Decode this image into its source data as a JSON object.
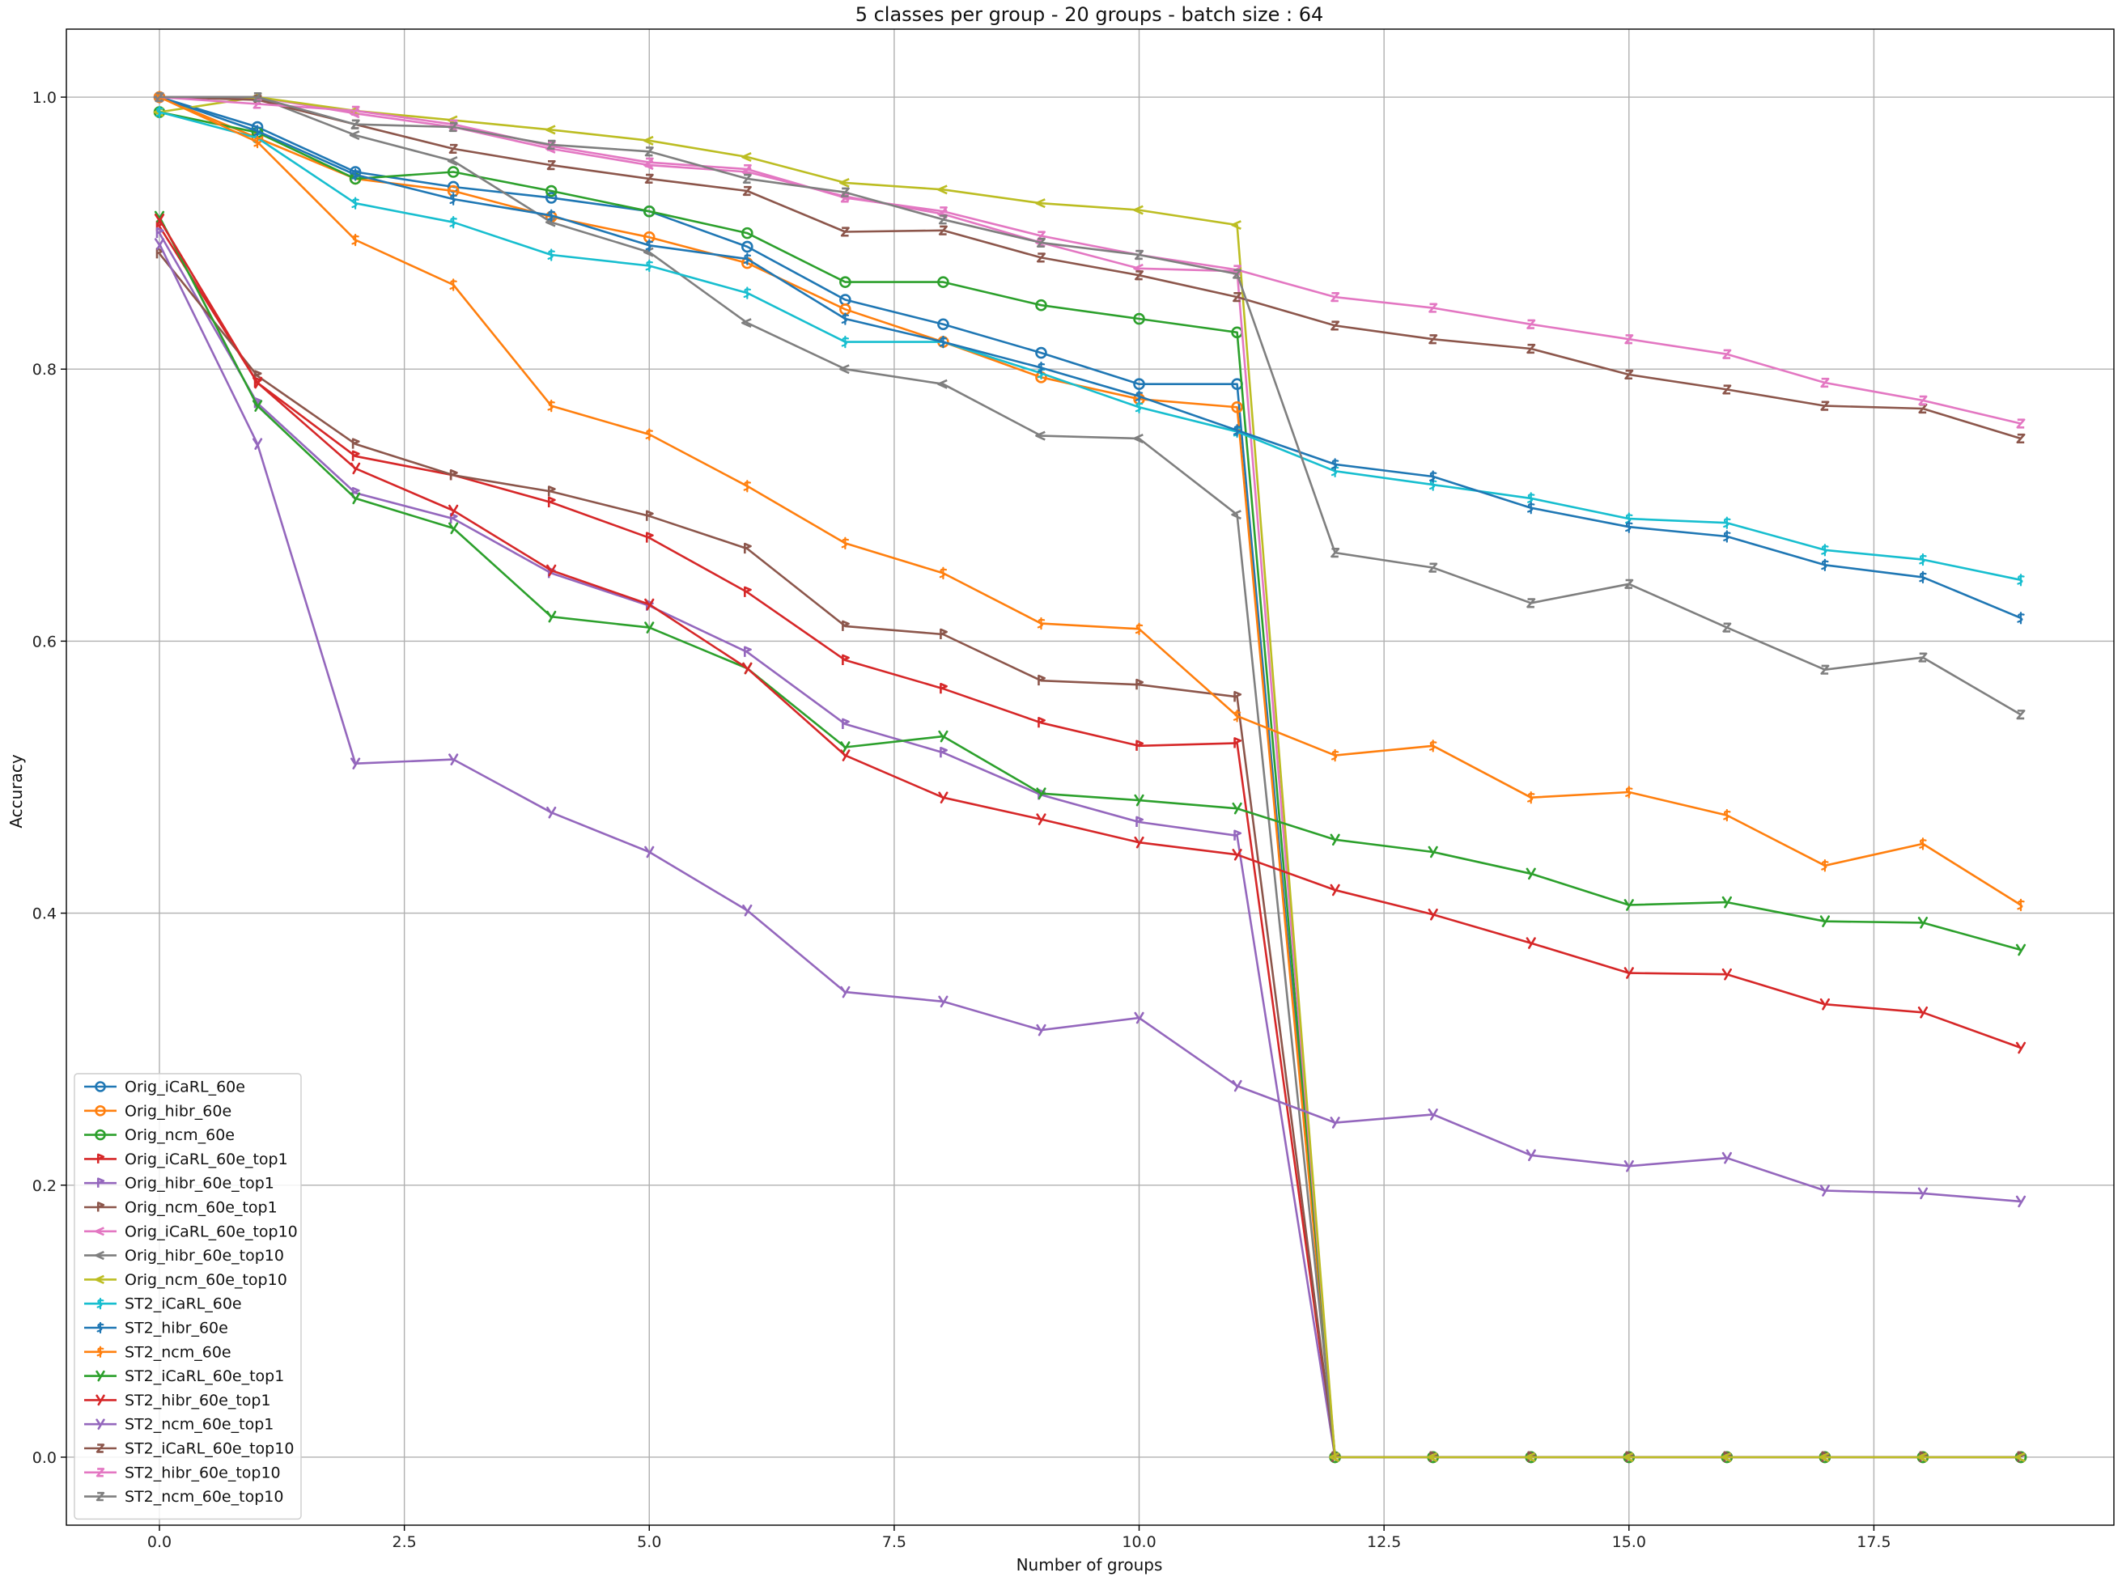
{
  "chart_data": {
    "type": "line",
    "title": "5 classes per group - 20 groups - batch size : 64",
    "xlabel": "Number of groups",
    "ylabel": "Accuracy",
    "xlim": [
      -0.95,
      19.95
    ],
    "ylim": [
      -0.05,
      1.05
    ],
    "xticks": [
      0.0,
      2.5,
      5.0,
      7.5,
      10.0,
      12.5,
      15.0,
      17.5
    ],
    "xtick_labels": [
      "0.0",
      "2.5",
      "5.0",
      "7.5",
      "10.0",
      "12.5",
      "15.0",
      "17.5"
    ],
    "yticks": [
      0.0,
      0.2,
      0.4,
      0.6,
      0.8,
      1.0
    ],
    "ytick_labels": [
      "0.0",
      "0.2",
      "0.4",
      "0.6",
      "0.8",
      "1.0"
    ],
    "grid": true,
    "legend_position": "lower-left",
    "series": [
      {
        "name": "Orig_iCaRL_60e",
        "color": "#1f77b4",
        "marker": "o",
        "x": [
          0,
          1,
          2,
          3,
          4,
          5,
          6,
          7,
          8,
          9,
          10,
          11,
          12,
          13,
          14,
          15,
          16,
          17,
          18,
          19
        ],
        "values": [
          1.0,
          0.978,
          0.945,
          0.934,
          0.926,
          0.916,
          0.89,
          0.851,
          0.833,
          0.812,
          0.789,
          0.789,
          0,
          0,
          0,
          0,
          0,
          0,
          0,
          0
        ]
      },
      {
        "name": "Orig_hibr_60e",
        "color": "#ff7f0e",
        "marker": "o",
        "x": [
          0,
          1,
          2,
          3,
          4,
          5,
          6,
          7,
          8,
          9,
          10,
          11,
          12,
          13,
          14,
          15,
          16,
          17,
          18,
          19
        ],
        "values": [
          1.0,
          0.97,
          0.94,
          0.931,
          0.912,
          0.897,
          0.878,
          0.844,
          0.82,
          0.794,
          0.778,
          0.772,
          0,
          0,
          0,
          0,
          0,
          0,
          0,
          0
        ]
      },
      {
        "name": "Orig_ncm_60e",
        "color": "#2ca02c",
        "marker": "o",
        "x": [
          0,
          1,
          2,
          3,
          4,
          5,
          6,
          7,
          8,
          9,
          10,
          11,
          12,
          13,
          14,
          15,
          16,
          17,
          18,
          19
        ],
        "values": [
          0.989,
          0.974,
          0.94,
          0.945,
          0.931,
          0.916,
          0.9,
          0.864,
          0.864,
          0.847,
          0.837,
          0.827,
          0,
          0,
          0,
          0,
          0,
          0,
          0,
          0
        ]
      },
      {
        "name": "Orig_iCaRL_60e_top1",
        "color": "#d62728",
        "marker": "p",
        "x": [
          0,
          1,
          2,
          3,
          4,
          5,
          6,
          7,
          8,
          9,
          10,
          11,
          12,
          13,
          14,
          15,
          16,
          17,
          18,
          19
        ],
        "values": [
          0.905,
          0.79,
          0.736,
          0.722,
          0.702,
          0.676,
          0.636,
          0.586,
          0.565,
          0.54,
          0.523,
          0.525,
          0,
          0,
          0,
          0,
          0,
          0,
          0,
          0
        ]
      },
      {
        "name": "Orig_hibr_60e_top1",
        "color": "#9467bd",
        "marker": "p",
        "x": [
          0,
          1,
          2,
          3,
          4,
          5,
          6,
          7,
          8,
          9,
          10,
          11,
          12,
          13,
          14,
          15,
          16,
          17,
          18,
          19
        ],
        "values": [
          0.9,
          0.775,
          0.709,
          0.69,
          0.65,
          0.626,
          0.592,
          0.539,
          0.518,
          0.487,
          0.467,
          0.457,
          0,
          0,
          0,
          0,
          0,
          0,
          0,
          0
        ]
      },
      {
        "name": "Orig_ncm_60e_top1",
        "color": "#8c564b",
        "marker": "p",
        "x": [
          0,
          1,
          2,
          3,
          4,
          5,
          6,
          7,
          8,
          9,
          10,
          11,
          12,
          13,
          14,
          15,
          16,
          17,
          18,
          19
        ],
        "values": [
          0.885,
          0.795,
          0.745,
          0.722,
          0.71,
          0.692,
          0.668,
          0.611,
          0.605,
          0.571,
          0.568,
          0.559,
          0,
          0,
          0,
          0,
          0,
          0,
          0,
          0
        ]
      },
      {
        "name": "Orig_iCaRL_60e_top10",
        "color": "#e377c2",
        "marker": "<",
        "x": [
          0,
          1,
          2,
          3,
          4,
          5,
          6,
          7,
          8,
          9,
          10,
          11,
          12,
          13,
          14,
          15,
          16,
          17,
          18,
          19
        ],
        "values": [
          1.0,
          1.0,
          0.988,
          0.978,
          0.962,
          0.95,
          0.945,
          0.927,
          0.914,
          0.893,
          0.874,
          0.872,
          0,
          0,
          0,
          0,
          0,
          0,
          0,
          0
        ]
      },
      {
        "name": "Orig_hibr_60e_top10",
        "color": "#7f7f7f",
        "marker": "<",
        "x": [
          0,
          1,
          2,
          3,
          4,
          5,
          6,
          7,
          8,
          9,
          10,
          11,
          12,
          13,
          14,
          15,
          16,
          17,
          18,
          19
        ],
        "values": [
          1.0,
          1.0,
          0.972,
          0.953,
          0.908,
          0.886,
          0.834,
          0.8,
          0.789,
          0.751,
          0.749,
          0.693,
          0,
          0,
          0,
          0,
          0,
          0,
          0,
          0
        ]
      },
      {
        "name": "Orig_ncm_60e_top10",
        "color": "#bcbd22",
        "marker": "<",
        "x": [
          0,
          1,
          2,
          3,
          4,
          5,
          6,
          7,
          8,
          9,
          10,
          11,
          12,
          13,
          14,
          15,
          16,
          17,
          18,
          19
        ],
        "values": [
          0.989,
          1.0,
          0.99,
          0.983,
          0.976,
          0.968,
          0.956,
          0.937,
          0.932,
          0.922,
          0.917,
          0.906,
          0,
          0,
          0,
          0,
          0,
          0,
          0,
          0
        ]
      },
      {
        "name": "ST2_iCaRL_60e",
        "color": "#17becf",
        "marker": "$",
        "x": [
          0,
          1,
          2,
          3,
          4,
          5,
          6,
          7,
          8,
          9,
          10,
          11,
          12,
          13,
          14,
          15,
          16,
          17,
          18,
          19
        ],
        "values": [
          0.989,
          0.97,
          0.922,
          0.908,
          0.884,
          0.876,
          0.856,
          0.82,
          0.82,
          0.797,
          0.772,
          0.754,
          0.725,
          0.715,
          0.705,
          0.69,
          0.687,
          0.667,
          0.66,
          0.645
        ]
      },
      {
        "name": "ST2_hibr_60e",
        "color": "#1f77b4",
        "marker": "$",
        "x": [
          0,
          1,
          2,
          3,
          4,
          5,
          6,
          7,
          8,
          9,
          10,
          11,
          12,
          13,
          14,
          15,
          16,
          17,
          18,
          19
        ],
        "values": [
          1.0,
          0.975,
          0.943,
          0.925,
          0.913,
          0.891,
          0.881,
          0.837,
          0.82,
          0.801,
          0.78,
          0.755,
          0.73,
          0.721,
          0.698,
          0.684,
          0.677,
          0.656,
          0.647,
          0.617
        ]
      },
      {
        "name": "ST2_ncm_60e",
        "color": "#ff7f0e",
        "marker": "$",
        "x": [
          0,
          1,
          2,
          3,
          4,
          5,
          6,
          7,
          8,
          9,
          10,
          11,
          12,
          13,
          14,
          15,
          16,
          17,
          18,
          19
        ],
        "values": [
          1.0,
          0.967,
          0.895,
          0.862,
          0.773,
          0.752,
          0.714,
          0.672,
          0.65,
          0.613,
          0.609,
          0.545,
          0.516,
          0.523,
          0.485,
          0.489,
          0.472,
          0.435,
          0.451,
          0.406
        ]
      },
      {
        "name": "ST2_iCaRL_60e_top1",
        "color": "#2ca02c",
        "marker": "y",
        "x": [
          0,
          1,
          2,
          3,
          4,
          5,
          6,
          7,
          8,
          9,
          10,
          11,
          12,
          13,
          14,
          15,
          16,
          17,
          18,
          19
        ],
        "values": [
          0.912,
          0.773,
          0.705,
          0.683,
          0.618,
          0.61,
          0.58,
          0.522,
          0.53,
          0.488,
          0.483,
          0.477,
          0.454,
          0.445,
          0.429,
          0.406,
          0.408,
          0.394,
          0.393,
          0.373
        ]
      },
      {
        "name": "ST2_hibr_60e_top1",
        "color": "#d62728",
        "marker": "y",
        "x": [
          0,
          1,
          2,
          3,
          4,
          5,
          6,
          7,
          8,
          9,
          10,
          11,
          12,
          13,
          14,
          15,
          16,
          17,
          18,
          19
        ],
        "values": [
          0.91,
          0.79,
          0.727,
          0.696,
          0.652,
          0.627,
          0.58,
          0.516,
          0.485,
          0.469,
          0.452,
          0.443,
          0.417,
          0.399,
          0.378,
          0.356,
          0.355,
          0.333,
          0.327,
          0.301
        ]
      },
      {
        "name": "ST2_ncm_60e_top1",
        "color": "#9467bd",
        "marker": "y",
        "x": [
          0,
          1,
          2,
          3,
          4,
          5,
          6,
          7,
          8,
          9,
          10,
          11,
          12,
          13,
          14,
          15,
          16,
          17,
          18,
          19
        ],
        "values": [
          0.892,
          0.745,
          0.51,
          0.513,
          0.474,
          0.445,
          0.402,
          0.342,
          0.335,
          0.314,
          0.323,
          0.273,
          0.246,
          0.252,
          0.222,
          0.214,
          0.22,
          0.196,
          0.194,
          0.188
        ]
      },
      {
        "name": "ST2_iCaRL_60e_top10",
        "color": "#8c564b",
        "marker": "z",
        "x": [
          0,
          1,
          2,
          3,
          4,
          5,
          6,
          7,
          8,
          9,
          10,
          11,
          12,
          13,
          14,
          15,
          16,
          17,
          18,
          19
        ],
        "values": [
          1.0,
          0.998,
          0.98,
          0.962,
          0.95,
          0.94,
          0.931,
          0.901,
          0.902,
          0.882,
          0.869,
          0.853,
          0.832,
          0.822,
          0.815,
          0.796,
          0.785,
          0.773,
          0.771,
          0.749
        ]
      },
      {
        "name": "ST2_hibr_60e_top10",
        "color": "#e377c2",
        "marker": "z",
        "x": [
          0,
          1,
          2,
          3,
          4,
          5,
          6,
          7,
          8,
          9,
          10,
          11,
          12,
          13,
          14,
          15,
          16,
          17,
          18,
          19
        ],
        "values": [
          1.0,
          0.995,
          0.99,
          0.98,
          0.964,
          0.952,
          0.947,
          0.926,
          0.916,
          0.898,
          0.884,
          0.873,
          0.853,
          0.845,
          0.833,
          0.822,
          0.811,
          0.79,
          0.777,
          0.76
        ]
      },
      {
        "name": "ST2_ncm_60e_top10",
        "color": "#7f7f7f",
        "marker": "z",
        "x": [
          0,
          1,
          2,
          3,
          4,
          5,
          6,
          7,
          8,
          9,
          10,
          11,
          12,
          13,
          14,
          15,
          16,
          17,
          18,
          19
        ],
        "values": [
          1.0,
          1.0,
          0.98,
          0.978,
          0.965,
          0.96,
          0.94,
          0.93,
          0.91,
          0.893,
          0.884,
          0.87,
          0.665,
          0.654,
          0.628,
          0.642,
          0.61,
          0.579,
          0.588,
          0.546
        ]
      }
    ]
  }
}
